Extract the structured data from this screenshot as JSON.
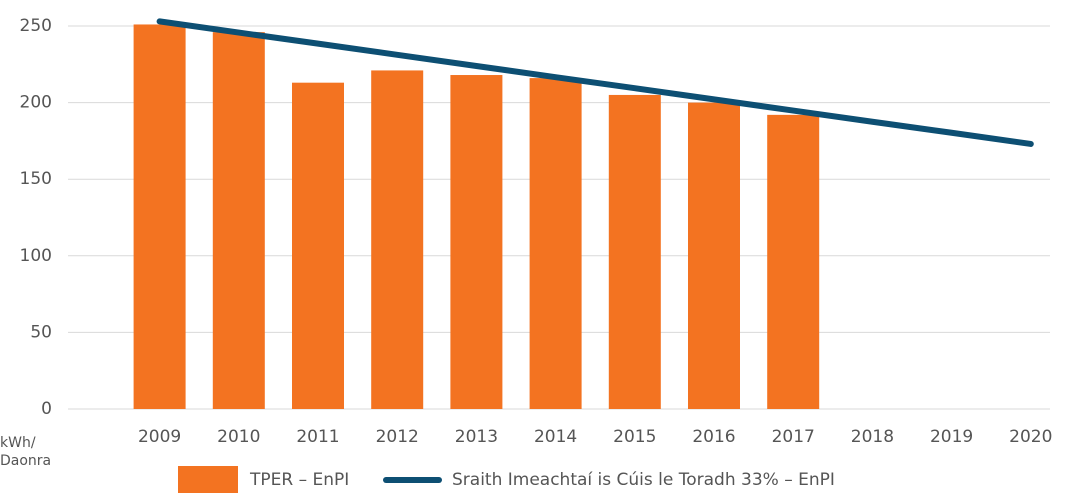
{
  "chart_data": {
    "type": "bar_line",
    "y_label": "kWh/ Daonra",
    "categories": [
      "2009",
      "2010",
      "2011",
      "2012",
      "2013",
      "2014",
      "2015",
      "2016",
      "2017",
      "2018",
      "2019",
      "2020"
    ],
    "series": [
      {
        "name": "TPER – EnPI",
        "type": "bar",
        "color": "#f37321",
        "values": [
          251,
          246,
          213,
          221,
          218,
          216,
          205,
          200,
          192,
          null,
          null,
          null
        ]
      },
      {
        "name": "Sraith Imeachtaí is Cúis le Toradh 33% – EnPI",
        "type": "line",
        "color": "#0d4f73",
        "values": [
          253,
          245.7,
          238.5,
          231.2,
          223.9,
          216.6,
          209.4,
          202.1,
          194.8,
          187.5,
          180.3,
          173
        ]
      }
    ],
    "ylim": [
      0,
      250
    ],
    "yticks": [
      0,
      50,
      100,
      150,
      200,
      250
    ],
    "grid": true,
    "legend": "bottom"
  }
}
